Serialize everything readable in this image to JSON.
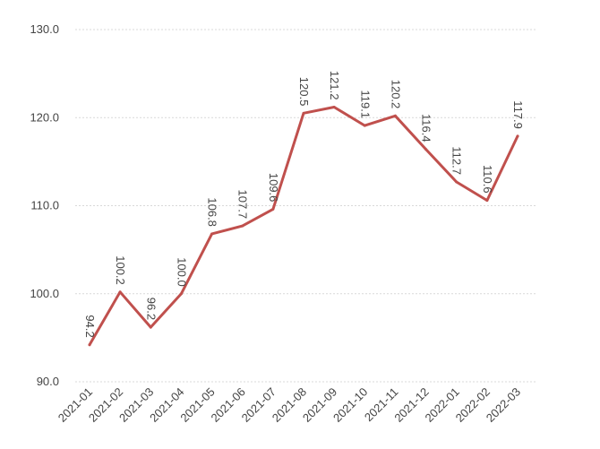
{
  "chart_data": {
    "type": "line",
    "title": "",
    "xlabel": "",
    "ylabel": "",
    "categories": [
      "2021-01",
      "2021-02",
      "2021-03",
      "2021-04",
      "2021-05",
      "2021-06",
      "2021-07",
      "2021-08",
      "2021-09",
      "2021-10",
      "2021-11",
      "2021-12",
      "2022-01",
      "2022-02",
      "2022-03"
    ],
    "series": [
      {
        "values": [
          94.2,
          100.2,
          96.2,
          100.0,
          106.8,
          107.7,
          109.6,
          120.5,
          121.2,
          119.1,
          120.2,
          116.4,
          112.7,
          110.6,
          117.9
        ]
      }
    ],
    "data_labels": [
      "94.2",
      "100.2",
      "96.2",
      "100.0",
      "106.8",
      "107.7",
      "109.6",
      "120.5",
      "121.2",
      "119.1",
      "120.2",
      "116.4",
      "112.7",
      "110.6",
      "117.9"
    ],
    "ylim": [
      90,
      130
    ],
    "yticks": [
      "90.0",
      "100.0",
      "110.0",
      "120.0",
      "130.0"
    ],
    "grid": true,
    "legend": "none",
    "line_color": "#c0504d"
  }
}
